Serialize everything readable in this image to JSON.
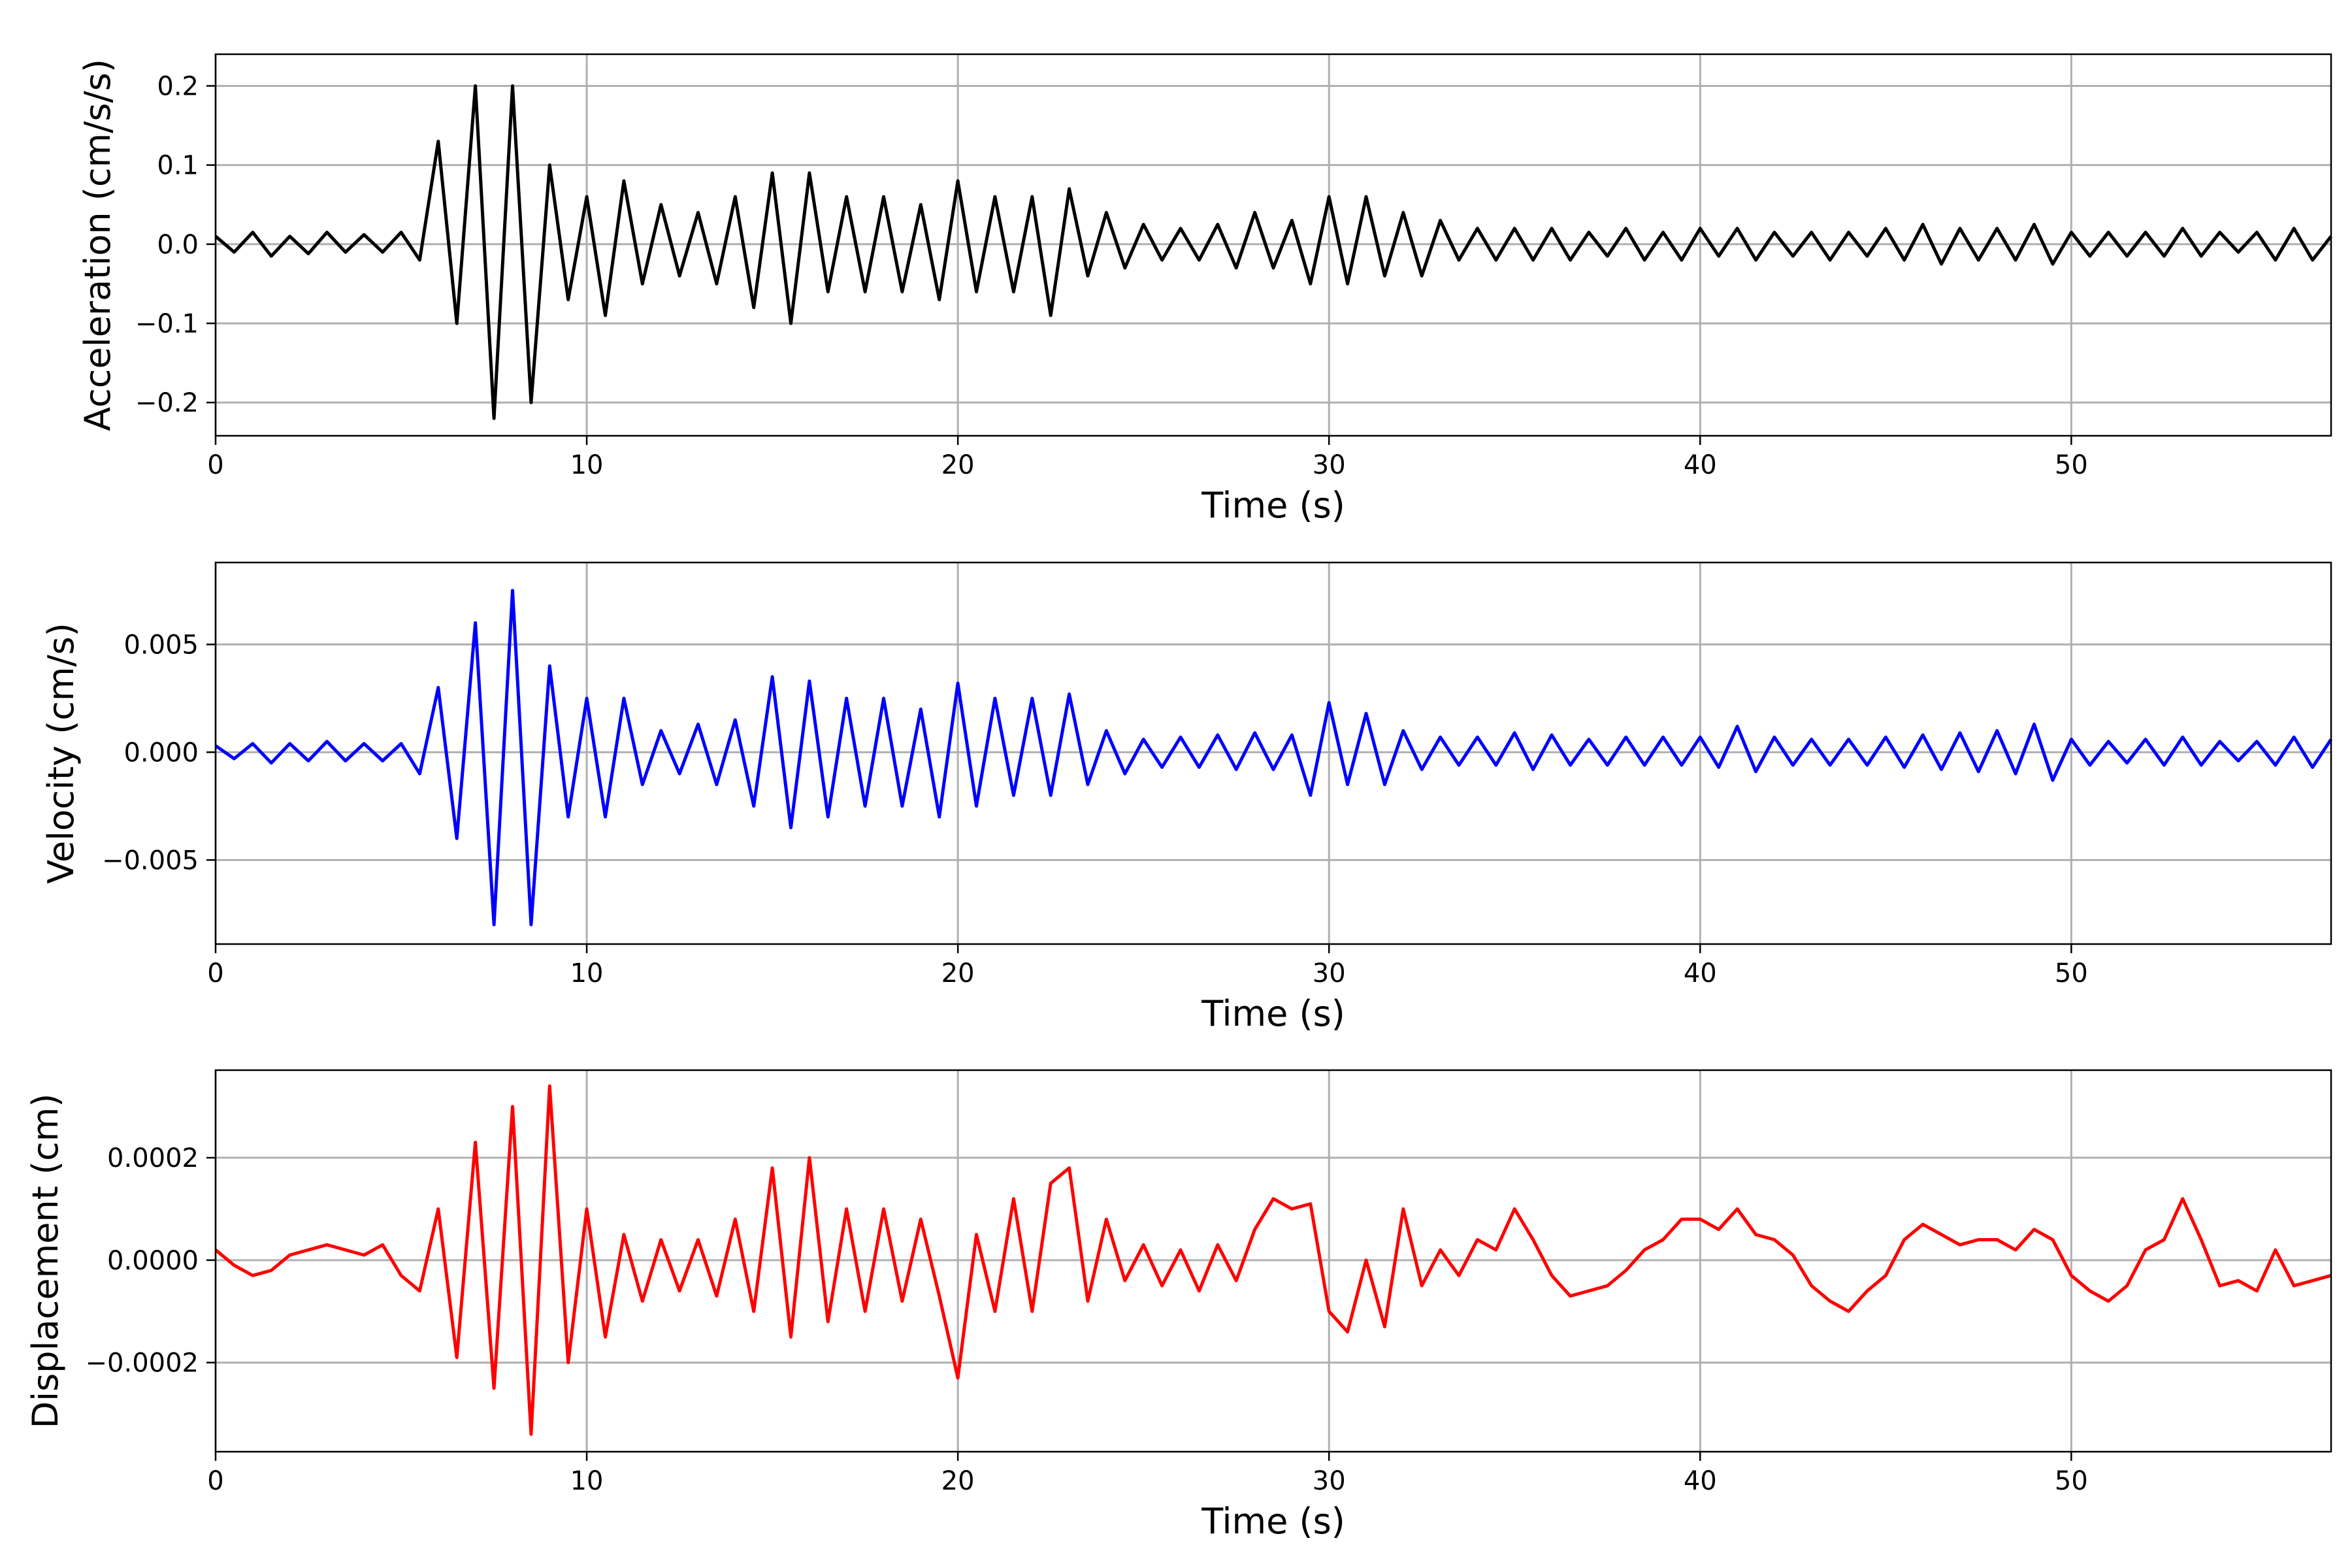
{
  "chart_data": [
    {
      "type": "line",
      "xlabel": "Time (s)",
      "ylabel": "Acceleration (cm/s/s)",
      "xlim": [
        0,
        57
      ],
      "ylim": [
        -0.242,
        0.24
      ],
      "grid": true,
      "color": "#000000",
      "xticks": [
        0,
        10,
        20,
        30,
        40,
        50
      ],
      "xtick_labels": [
        "0",
        "10",
        "20",
        "30",
        "40",
        "50"
      ],
      "yticks": [
        -0.2,
        -0.1,
        0.0,
        0.1,
        0.2
      ],
      "ytick_labels": [
        "−0.2",
        "−0.1",
        "0.0",
        "0.1",
        "0.2"
      ],
      "values": [
        0.01,
        -0.01,
        0.015,
        -0.015,
        0.01,
        -0.012,
        0.015,
        -0.01,
        0.012,
        -0.01,
        0.015,
        -0.02,
        0.13,
        -0.1,
        0.2,
        -0.22,
        0.2,
        -0.2,
        0.1,
        -0.07,
        0.06,
        -0.09,
        0.08,
        -0.05,
        0.05,
        -0.04,
        0.04,
        -0.05,
        0.06,
        -0.08,
        0.09,
        -0.1,
        0.09,
        -0.06,
        0.06,
        -0.06,
        0.06,
        -0.06,
        0.05,
        -0.07,
        0.08,
        -0.06,
        0.06,
        -0.06,
        0.06,
        -0.09,
        0.07,
        -0.04,
        0.04,
        -0.03,
        0.025,
        -0.02,
        0.02,
        -0.02,
        0.025,
        -0.03,
        0.04,
        -0.03,
        0.03,
        -0.05,
        0.06,
        -0.05,
        0.06,
        -0.04,
        0.04,
        -0.04,
        0.03,
        -0.02,
        0.02,
        -0.02,
        0.02,
        -0.02,
        0.02,
        -0.02,
        0.015,
        -0.015,
        0.02,
        -0.02,
        0.015,
        -0.02,
        0.02,
        -0.015,
        0.02,
        -0.02,
        0.015,
        -0.015,
        0.015,
        -0.02,
        0.015,
        -0.015,
        0.02,
        -0.02,
        0.025,
        -0.025,
        0.02,
        -0.02,
        0.02,
        -0.02,
        0.025,
        -0.025,
        0.015,
        -0.015,
        0.015,
        -0.015,
        0.015,
        -0.015,
        0.02,
        -0.015,
        0.015,
        -0.01,
        0.015,
        -0.02,
        0.02,
        -0.02,
        0.01
      ]
    },
    {
      "type": "line",
      "xlabel": "Time (s)",
      "ylabel": "Velocity (cm/s)",
      "xlim": [
        0,
        57
      ],
      "ylim": [
        -0.0089,
        0.0088
      ],
      "grid": true,
      "color": "#0000ff",
      "xticks": [
        0,
        10,
        20,
        30,
        40,
        50
      ],
      "xtick_labels": [
        "0",
        "10",
        "20",
        "30",
        "40",
        "50"
      ],
      "yticks": [
        -0.005,
        0.0,
        0.005
      ],
      "ytick_labels": [
        "−0.005",
        "0.000",
        "0.005"
      ],
      "values": [
        0.0003,
        -0.0003,
        0.0004,
        -0.0005,
        0.0004,
        -0.0004,
        0.0005,
        -0.0004,
        0.0004,
        -0.0004,
        0.0004,
        -0.001,
        0.003,
        -0.004,
        0.006,
        -0.008,
        0.0075,
        -0.008,
        0.004,
        -0.003,
        0.0025,
        -0.003,
        0.0025,
        -0.0015,
        0.001,
        -0.001,
        0.0013,
        -0.0015,
        0.0015,
        -0.0025,
        0.0035,
        -0.0035,
        0.0033,
        -0.003,
        0.0025,
        -0.0025,
        0.0025,
        -0.0025,
        0.002,
        -0.003,
        0.0032,
        -0.0025,
        0.0025,
        -0.002,
        0.0025,
        -0.002,
        0.0027,
        -0.0015,
        0.001,
        -0.001,
        0.0006,
        -0.0007,
        0.0007,
        -0.0007,
        0.0008,
        -0.0008,
        0.0009,
        -0.0008,
        0.0008,
        -0.002,
        0.0023,
        -0.0015,
        0.0018,
        -0.0015,
        0.001,
        -0.0008,
        0.0007,
        -0.0006,
        0.0007,
        -0.0006,
        0.0009,
        -0.0008,
        0.0008,
        -0.0006,
        0.0006,
        -0.0006,
        0.0007,
        -0.0006,
        0.0007,
        -0.0006,
        0.0007,
        -0.0007,
        0.0012,
        -0.0009,
        0.0007,
        -0.0006,
        0.0006,
        -0.0006,
        0.0006,
        -0.0006,
        0.0007,
        -0.0007,
        0.0008,
        -0.0008,
        0.0009,
        -0.0009,
        0.001,
        -0.001,
        0.0013,
        -0.0013,
        0.0006,
        -0.0006,
        0.0005,
        -0.0005,
        0.0006,
        -0.0006,
        0.0007,
        -0.0006,
        0.0005,
        -0.0004,
        0.0005,
        -0.0006,
        0.0007,
        -0.0007,
        0.0006
      ]
    },
    {
      "type": "line",
      "xlabel": "Time (s)",
      "ylabel": "Displacement (cm)",
      "xlim": [
        0,
        57
      ],
      "ylim": [
        -0.000374,
        0.000371
      ],
      "grid": true,
      "color": "#ff0000",
      "xticks": [
        0,
        10,
        20,
        30,
        40,
        50
      ],
      "xtick_labels": [
        "0",
        "10",
        "20",
        "30",
        "40",
        "50"
      ],
      "yticks": [
        -0.0002,
        0.0,
        0.0002
      ],
      "ytick_labels": [
        "−0.0002",
        "0.0000",
        "0.0002"
      ],
      "values": [
        2e-05,
        -1e-05,
        -3e-05,
        -2e-05,
        1e-05,
        2e-05,
        3e-05,
        2e-05,
        1e-05,
        3e-05,
        -3e-05,
        -6e-05,
        0.0001,
        -0.00019,
        0.00023,
        -0.00025,
        0.0003,
        -0.00034,
        0.00034,
        -0.0002,
        0.0001,
        -0.00015,
        5e-05,
        -8e-05,
        4e-05,
        -6e-05,
        4e-05,
        -7e-05,
        8e-05,
        -0.0001,
        0.00018,
        -0.00015,
        0.0002,
        -0.00012,
        0.0001,
        -0.0001,
        0.0001,
        -8e-05,
        8e-05,
        -7e-05,
        -0.00023,
        5e-05,
        -0.0001,
        0.00012,
        -0.0001,
        0.00015,
        0.00018,
        -8e-05,
        8e-05,
        -4e-05,
        3e-05,
        -5e-05,
        2e-05,
        -6e-05,
        3e-05,
        -4e-05,
        6e-05,
        0.00012,
        0.0001,
        0.00011,
        -0.0001,
        -0.00014,
        0.0,
        -0.00013,
        0.0001,
        -5e-05,
        2e-05,
        -3e-05,
        4e-05,
        2e-05,
        0.0001,
        4e-05,
        -3e-05,
        -7e-05,
        -6e-05,
        -5e-05,
        -2e-05,
        2e-05,
        4e-05,
        8e-05,
        8e-05,
        6e-05,
        0.0001,
        5e-05,
        4e-05,
        1e-05,
        -5e-05,
        -8e-05,
        -0.0001,
        -6e-05,
        -3e-05,
        4e-05,
        7e-05,
        5e-05,
        3e-05,
        4e-05,
        4e-05,
        2e-05,
        6e-05,
        4e-05,
        -3e-05,
        -6e-05,
        -8e-05,
        -5e-05,
        2e-05,
        4e-05,
        0.00012,
        4e-05,
        -5e-05,
        -4e-05,
        -6e-05,
        2e-05,
        -5e-05,
        -4e-05,
        -3e-05
      ]
    }
  ]
}
